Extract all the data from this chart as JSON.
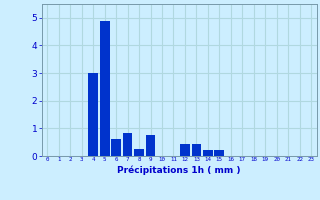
{
  "values": [
    0,
    0,
    0,
    0,
    3.0,
    4.9,
    0.6,
    0.85,
    0.25,
    0.75,
    0,
    0,
    0.45,
    0.45,
    0.22,
    0.22,
    0,
    0,
    0,
    0,
    0,
    0,
    0,
    0
  ],
  "categories": [
    0,
    1,
    2,
    3,
    4,
    5,
    6,
    7,
    8,
    9,
    10,
    11,
    12,
    13,
    14,
    15,
    16,
    17,
    18,
    19,
    20,
    21,
    22,
    23
  ],
  "bar_color": "#0033cc",
  "background_color": "#cceeff",
  "grid_color": "#b0d8e0",
  "xlabel": "Précipitations 1h ( mm )",
  "xlabel_color": "#0000cc",
  "tick_color": "#0000cc",
  "ylim": [
    0,
    5.5
  ],
  "yticks": [
    0,
    1,
    2,
    3,
    4,
    5
  ],
  "xlim": [
    -0.5,
    23.5
  ],
  "bar_width": 0.85
}
